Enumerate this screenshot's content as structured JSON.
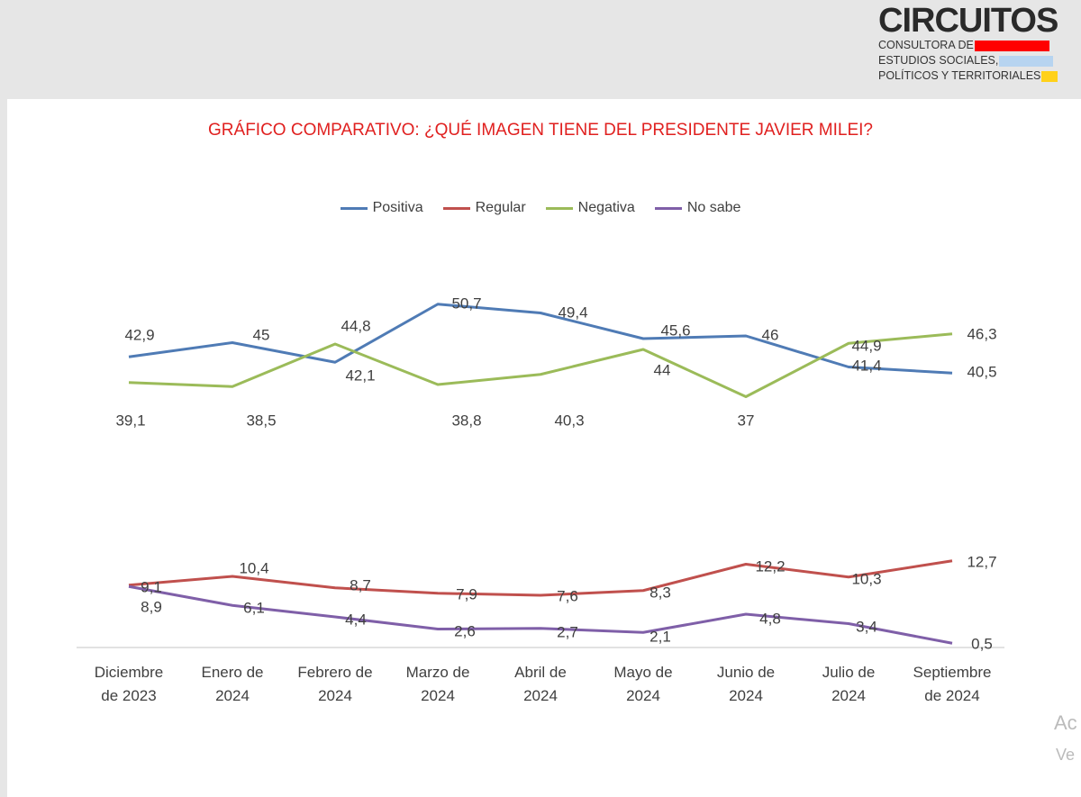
{
  "logo": {
    "name": "CIRCUITOS",
    "lines": [
      "CONSULTORA DE",
      "ESTUDIOS SOCIALES,",
      "POLÍTICOS Y TERRITORIALES"
    ]
  },
  "watermark": [
    "Ac",
    "Ve"
  ],
  "chart_data": {
    "type": "line",
    "title": "GRÁFICO COMPARATIVO: ¿QUÉ IMAGEN TIENE DEL PRESIDENTE JAVIER MILEI?",
    "categories": [
      [
        "Diciembre",
        "de 2023"
      ],
      [
        "Enero de",
        "2024"
      ],
      [
        "Febrero de",
        "2024"
      ],
      [
        "Marzo de",
        "2024"
      ],
      [
        "Abril de",
        "2024"
      ],
      [
        "Mayo de",
        "2024"
      ],
      [
        "Junio de",
        "2024"
      ],
      [
        "Julio de",
        "2024"
      ],
      [
        "Septiembre",
        "de 2024"
      ]
    ],
    "legend_position": "top",
    "ylim": [
      0,
      55
    ],
    "series": [
      {
        "name": "Positiva",
        "color": "#4f7bb5",
        "values": [
          42.9,
          45,
          42.1,
          50.7,
          49.4,
          45.6,
          46,
          41.4,
          40.5
        ],
        "labels": [
          "42,9",
          "45",
          "42,1",
          "50,7",
          "49,4",
          "45,6",
          "46",
          "41,4",
          "40,5"
        ]
      },
      {
        "name": "Regular",
        "color": "#c0504d",
        "values": [
          9.1,
          10.4,
          8.7,
          7.9,
          7.6,
          8.3,
          12.2,
          10.3,
          12.7
        ],
        "labels": [
          "9,1",
          "10,4",
          "8,7",
          "7,9",
          "7,6",
          "8,3",
          "12,2",
          "10,3",
          "12,7"
        ]
      },
      {
        "name": "Negativa",
        "color": "#9bbb59",
        "values": [
          39.1,
          38.5,
          44.8,
          38.8,
          40.3,
          44,
          37,
          44.9,
          46.3
        ],
        "labels": [
          "39,1",
          "38,5",
          "44,8",
          "38,8",
          "40,3",
          "44",
          "37",
          "44,9",
          "46,3"
        ]
      },
      {
        "name": "No sabe",
        "color": "#7f5fa8",
        "values": [
          8.9,
          6.1,
          4.4,
          2.6,
          2.7,
          2.1,
          4.8,
          3.4,
          0.5
        ],
        "labels": [
          "8,9",
          "6,1",
          "4,4",
          "2,6",
          "2,7",
          "2,1",
          "4,8",
          "3,4",
          "0,5"
        ]
      }
    ]
  }
}
